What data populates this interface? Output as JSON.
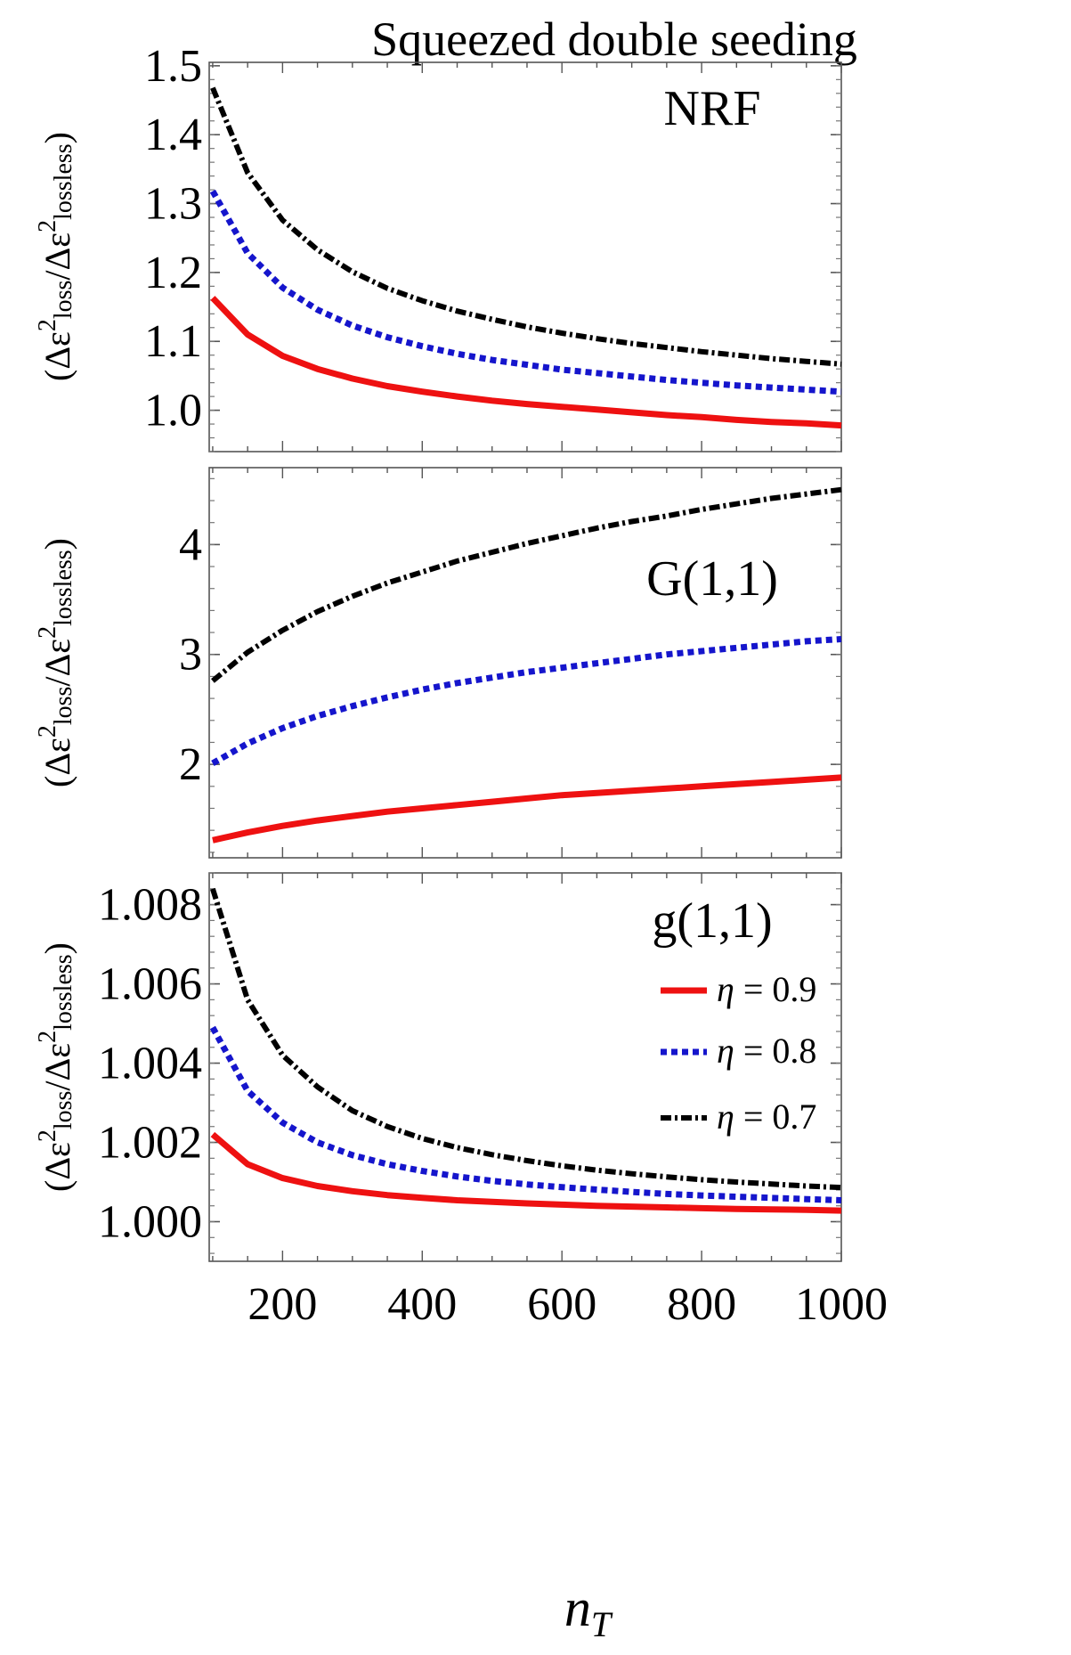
{
  "chart_data": {
    "type": "line",
    "title": "Squeezed double seeding",
    "xlabel": "n",
    "xlabel_sub": "T",
    "ylabel": {
      "open": "(",
      "delta1": "Δε",
      "sup1": "2",
      "sub1": "loss",
      "slash": "/",
      "delta2": "Δε",
      "sup2": "2",
      "sub2": "lossless",
      "close": ")"
    },
    "xlim": [
      95,
      1000
    ],
    "xticks": [
      200,
      400,
      600,
      800,
      1000
    ],
    "x": [
      100,
      150,
      200,
      250,
      300,
      350,
      400,
      450,
      500,
      550,
      600,
      650,
      700,
      750,
      800,
      850,
      900,
      950,
      1000
    ],
    "legend": {
      "location": "bottom-panel top-right",
      "entries": [
        {
          "symbol": "η",
          "text": "= 0.9",
          "color": "#ee1111",
          "style": "solid"
        },
        {
          "symbol": "η",
          "text": "= 0.8",
          "color": "#1515cc",
          "style": "dotted"
        },
        {
          "symbol": "η",
          "text": "= 0.7",
          "color": "#000000",
          "style": "dashdot"
        }
      ]
    },
    "panels": [
      {
        "label": "NRF",
        "ylim": [
          0.94,
          1.505
        ],
        "yticks": [
          "1.0",
          "1.1",
          "1.2",
          "1.3",
          "1.4",
          "1.5"
        ],
        "series": [
          {
            "name": "η = 0.9",
            "values": [
              1.163,
              1.11,
              1.079,
              1.06,
              1.046,
              1.035,
              1.027,
              1.02,
              1.014,
              1.009,
              1.005,
              1.001,
              0.997,
              0.993,
              0.99,
              0.986,
              0.983,
              0.981,
              0.978
            ]
          },
          {
            "name": "η = 0.8",
            "values": [
              1.318,
              1.228,
              1.178,
              1.146,
              1.123,
              1.106,
              1.093,
              1.082,
              1.073,
              1.066,
              1.059,
              1.054,
              1.049,
              1.044,
              1.04,
              1.036,
              1.033,
              1.03,
              1.027
            ]
          },
          {
            "name": "η = 0.7",
            "values": [
              1.468,
              1.345,
              1.276,
              1.233,
              1.201,
              1.177,
              1.159,
              1.144,
              1.132,
              1.121,
              1.112,
              1.104,
              1.097,
              1.091,
              1.085,
              1.08,
              1.075,
              1.071,
              1.067
            ]
          }
        ]
      },
      {
        "label": "G(1,1)",
        "ylim": [
          1.15,
          4.7
        ],
        "yticks": [
          "2",
          "3",
          "4"
        ],
        "series": [
          {
            "name": "η = 0.9",
            "values": [
              1.31,
              1.38,
              1.44,
              1.49,
              1.53,
              1.57,
              1.6,
              1.63,
              1.66,
              1.69,
              1.72,
              1.74,
              1.76,
              1.78,
              1.8,
              1.82,
              1.84,
              1.86,
              1.88
            ]
          },
          {
            "name": "η = 0.8",
            "values": [
              2.01,
              2.19,
              2.33,
              2.44,
              2.53,
              2.61,
              2.68,
              2.74,
              2.79,
              2.84,
              2.88,
              2.92,
              2.96,
              3.0,
              3.03,
              3.06,
              3.09,
              3.12,
              3.14
            ]
          },
          {
            "name": "η = 0.7",
            "values": [
              2.76,
              3.02,
              3.22,
              3.39,
              3.53,
              3.65,
              3.75,
              3.85,
              3.93,
              4.01,
              4.08,
              4.15,
              4.21,
              4.26,
              4.32,
              4.37,
              4.42,
              4.46,
              4.5
            ]
          }
        ]
      },
      {
        "label": "g(1,1)",
        "ylim": [
          0.999,
          1.0088
        ],
        "yticks": [
          "1.000",
          "1.002",
          "1.004",
          "1.006",
          "1.008"
        ],
        "series": [
          {
            "name": "η = 0.9",
            "values": [
              1.0022,
              1.00145,
              1.0011,
              1.0009,
              1.00077,
              1.00067,
              1.0006,
              1.00054,
              1.0005,
              1.00046,
              1.00043,
              1.0004,
              1.00038,
              1.00036,
              1.00034,
              1.00032,
              1.00031,
              1.0003,
              1.00028
            ]
          },
          {
            "name": "η = 0.8",
            "values": [
              1.0049,
              1.0033,
              1.0025,
              1.002,
              1.00168,
              1.00145,
              1.00128,
              1.00114,
              1.00103,
              1.00094,
              1.00087,
              1.00081,
              1.00075,
              1.0007,
              1.00066,
              1.00063,
              1.0006,
              1.00057,
              1.00054
            ]
          },
          {
            "name": "η = 0.7",
            "values": [
              1.0084,
              1.0056,
              1.0042,
              1.0034,
              1.0028,
              1.0024,
              1.0021,
              1.00187,
              1.00169,
              1.00154,
              1.00141,
              1.0013,
              1.00121,
              1.00113,
              1.00106,
              1.001,
              1.00095,
              1.0009,
              1.00086
            ]
          }
        ]
      }
    ]
  }
}
